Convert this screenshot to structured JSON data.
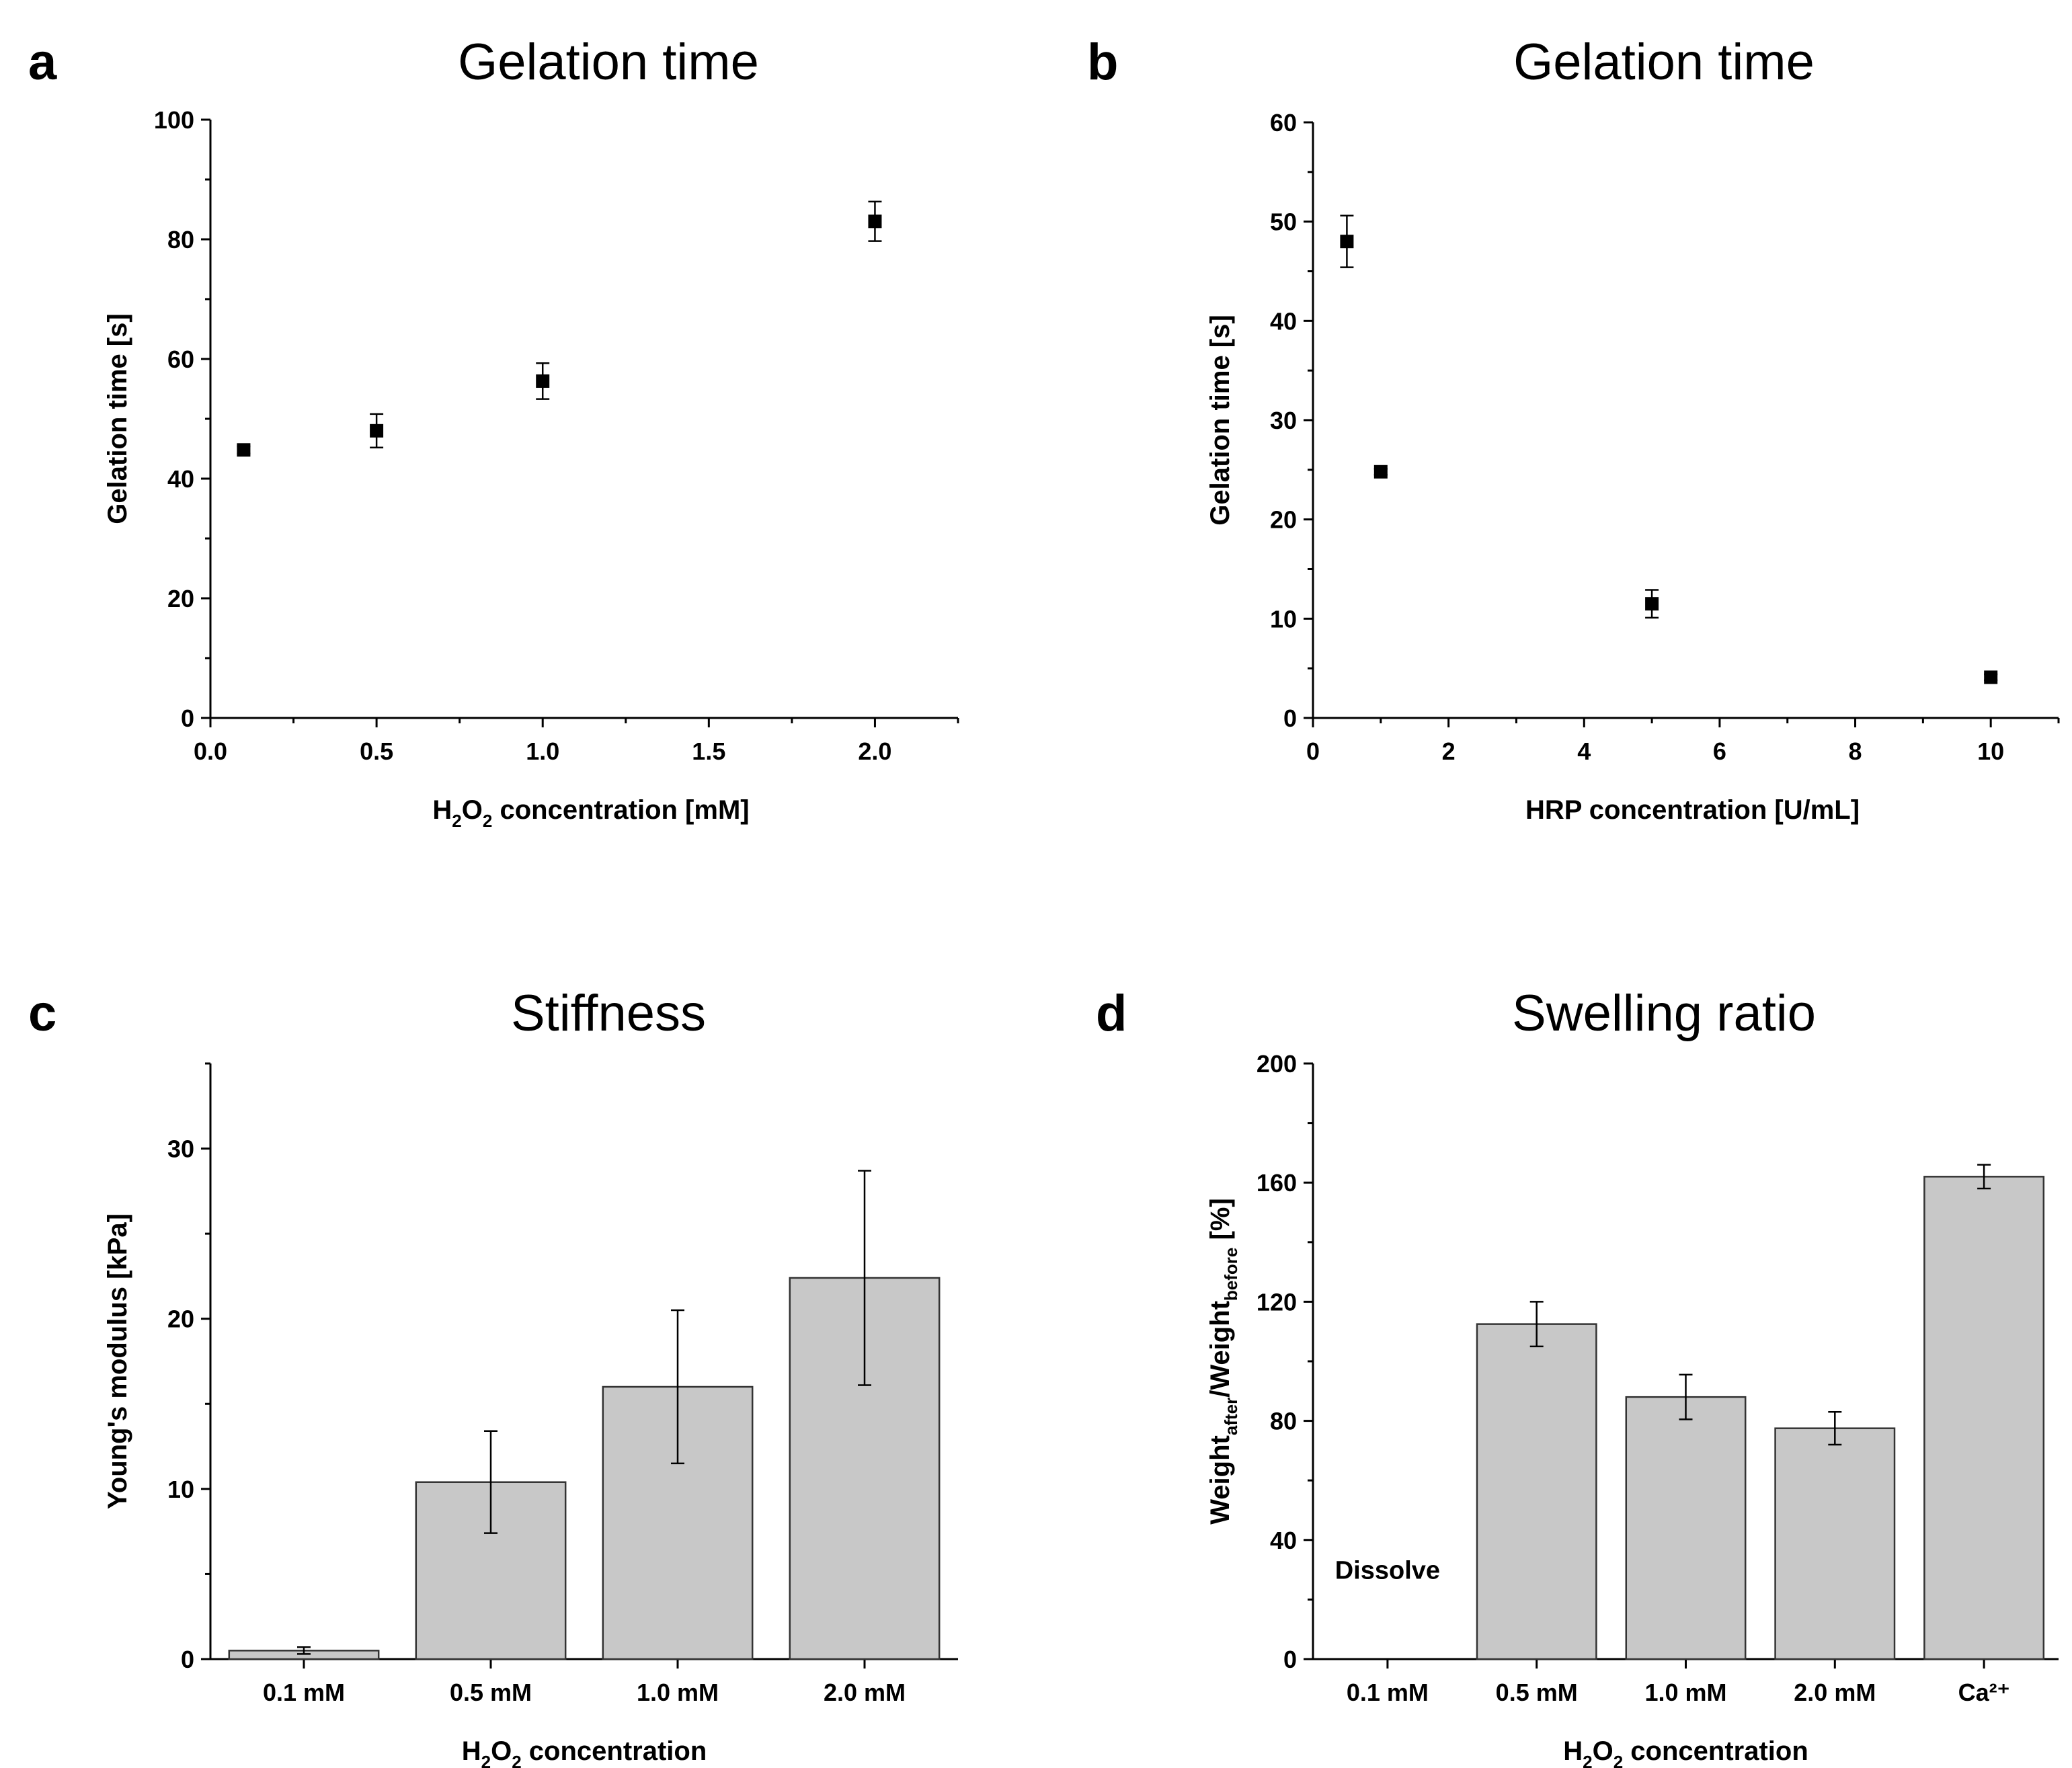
{
  "chart_data": [
    {
      "panel": "a",
      "type": "scatter",
      "title": "Gelation time",
      "xlabel": "H2O2 concentration [mM]",
      "xlabel_parts": [
        "H",
        "2",
        "O",
        "2",
        " concentration [mM]"
      ],
      "ylabel": "Gelation time [s]",
      "xlim": [
        0,
        2.25
      ],
      "ylim": [
        0,
        100
      ],
      "xticks": [
        0.0,
        0.5,
        1.0,
        1.5,
        2.0
      ],
      "xtick_labels": [
        "0.0",
        "0.5",
        "1.0",
        "1.5",
        "2.0"
      ],
      "yticks": [
        0,
        20,
        40,
        60,
        80,
        100
      ],
      "ytick_labels": [
        "0",
        "20",
        "40",
        "60",
        "80",
        "100"
      ],
      "x": [
        0.1,
        0.5,
        1.0,
        2.0
      ],
      "y": [
        44.8,
        48.0,
        56.3,
        83.0
      ],
      "yerr": [
        0.6,
        2.8,
        3.0,
        3.3
      ]
    },
    {
      "panel": "b",
      "type": "scatter",
      "title": "Gelation time",
      "xlabel": "HRP concentration [U/mL]",
      "ylabel": "Gelation time [s]",
      "xlim": [
        0,
        11
      ],
      "ylim": [
        0,
        60
      ],
      "xticks": [
        0,
        2,
        4,
        6,
        8,
        10
      ],
      "xtick_labels": [
        "0",
        "2",
        "4",
        "6",
        "8",
        "10"
      ],
      "yticks": [
        0,
        10,
        20,
        30,
        40,
        50,
        60
      ],
      "ytick_labels": [
        "0",
        "10",
        "20",
        "30",
        "40",
        "50",
        "60"
      ],
      "x": [
        0.5,
        1.0,
        5.0,
        10.0
      ],
      "y": [
        48.0,
        24.8,
        11.5,
        4.1
      ],
      "yerr": [
        2.6,
        0.3,
        1.4,
        0.3
      ]
    },
    {
      "panel": "c",
      "type": "bar",
      "title": "Stiffness",
      "xlabel": "H2O2 concentration",
      "xlabel_parts": [
        "H",
        "2",
        "O",
        "2",
        " concentration"
      ],
      "ylabel": "Young's modulus [kPa]",
      "ylim": [
        0,
        35
      ],
      "yticks": [
        0,
        10,
        20,
        30
      ],
      "ytick_labels": [
        "0",
        "10",
        "20",
        "30"
      ],
      "categories": [
        "0.1 mM",
        "0.5 mM",
        "1.0 mM",
        "2.0 mM"
      ],
      "values": [
        0.5,
        10.4,
        16.0,
        22.4
      ],
      "yerr": [
        0.2,
        3.0,
        4.5,
        6.3
      ]
    },
    {
      "panel": "d",
      "type": "bar",
      "title": "Swelling ratio",
      "xlabel": "H2O2 concentration",
      "xlabel_parts": [
        "H",
        "2",
        "O",
        "2",
        " concentration"
      ],
      "ylabel": "Weightafter/Weightbefore [%]",
      "ylabel_parts": [
        "Weight",
        "after",
        "/Weight",
        "before",
        " [%]"
      ],
      "ylim": [
        0,
        200
      ],
      "yticks": [
        0,
        40,
        80,
        120,
        160,
        200
      ],
      "ytick_labels": [
        "0",
        "40",
        "80",
        "120",
        "160",
        "200"
      ],
      "categories": [
        "0.1 mM",
        "0.5 mM",
        "1.0 mM",
        "2.0 mM",
        "Ca²⁺"
      ],
      "values": [
        null,
        112.5,
        88.0,
        77.5,
        162.0
      ],
      "yerr": [
        null,
        7.5,
        7.5,
        5.5,
        4.0
      ],
      "annotation": "Dissolve"
    }
  ]
}
